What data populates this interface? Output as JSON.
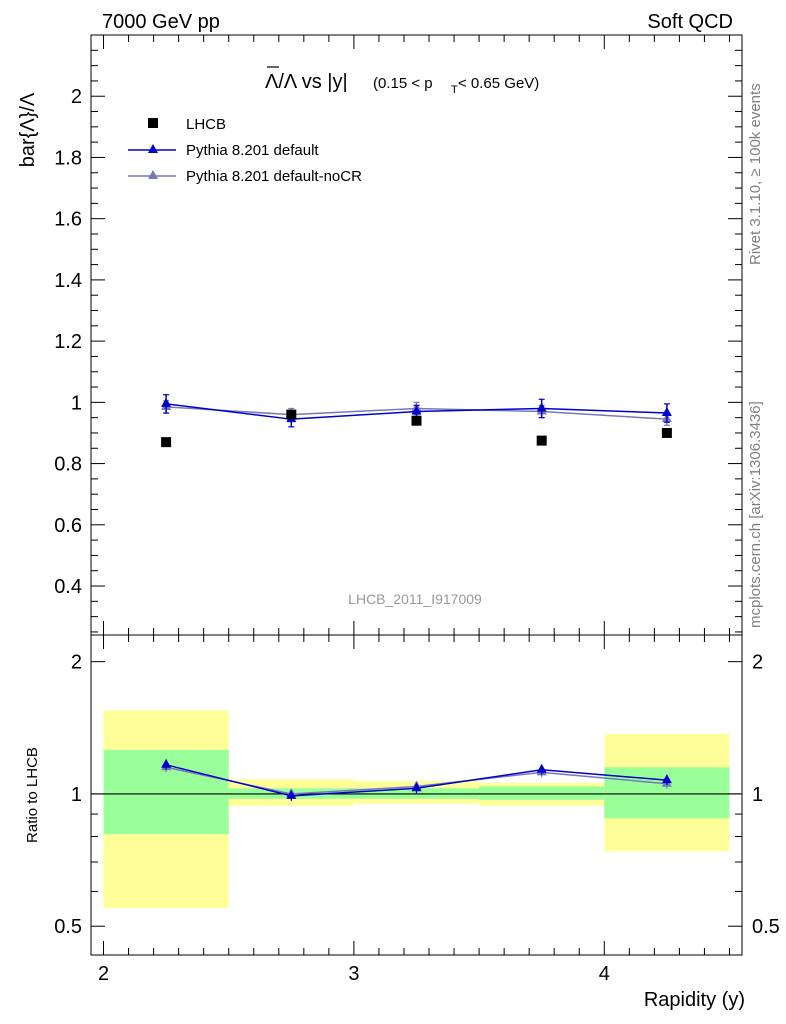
{
  "header": {
    "left": "7000 GeV pp",
    "right": "Soft QCD"
  },
  "side": {
    "rivet": "Rivet 3.1.10, ≥ 100k events",
    "mcplots": "mcplots.cern.ch [arXiv:1306.3436]"
  },
  "watermark": "LHCB_2011_I917009",
  "title": {
    "main": "Λ/Λ vs |y|",
    "cut_open": "(0.15 < p",
    "cut_sub": "T",
    "cut_close": " < 0.65 GeV)"
  },
  "ylabel_top": "bar{Λ}/Λ",
  "ylabel_bottom": "Ratio to LHCB",
  "xlabel": "Rapidity (y)",
  "legend": [
    {
      "label": "LHCB",
      "marker": "square",
      "color": "#000000"
    },
    {
      "label": "Pythia 8.201 default",
      "marker": "triangle",
      "color": "#0000cc"
    },
    {
      "label": "Pythia 8.201 default-noCR",
      "marker": "triangle",
      "color": "#7777bb"
    }
  ],
  "colors": {
    "band_inner": "#99ff99",
    "band_outer": "#ffff99",
    "default": "#0000cc",
    "noCR": "#7777bb",
    "data": "#000000"
  },
  "chart_data": [
    {
      "type": "scatter",
      "panel": "main",
      "x_ticks": [
        2,
        3,
        4
      ],
      "y_ticks": [
        0.4,
        0.6,
        0.8,
        1,
        1.2,
        1.4,
        1.6,
        1.8,
        2
      ],
      "xlim": [
        1.95,
        4.55
      ],
      "ylim": [
        0.24,
        2.2
      ],
      "series": [
        {
          "name": "LHCB",
          "x": [
            2.25,
            2.75,
            3.25,
            3.75,
            4.25
          ],
          "y": [
            0.87,
            0.96,
            0.94,
            0.875,
            0.9
          ],
          "xerr": [
            0.25,
            0.25,
            0.25,
            0.25,
            0.25
          ]
        },
        {
          "name": "Pythia 8.201 default",
          "x": [
            2.25,
            2.75,
            3.25,
            3.75,
            4.25
          ],
          "y": [
            0.995,
            0.945,
            0.97,
            0.98,
            0.965
          ],
          "yerr": [
            0.03,
            0.025,
            0.02,
            0.03,
            0.03
          ]
        },
        {
          "name": "Pythia 8.201 default-noCR",
          "x": [
            2.25,
            2.75,
            3.25,
            3.75,
            4.25
          ],
          "y": [
            0.985,
            0.96,
            0.98,
            0.97,
            0.945
          ],
          "yerr": [
            0.02,
            0.02,
            0.02,
            0.02,
            0.02
          ]
        }
      ]
    },
    {
      "type": "scatter",
      "panel": "ratio",
      "ylabel": "Ratio to LHCB",
      "xlabel": "Rapidity (y)",
      "x_ticks": [
        2,
        3,
        4
      ],
      "y_ticks": [
        0.5,
        1,
        2
      ],
      "yscale": "log",
      "xlim": [
        1.95,
        4.55
      ],
      "ylim": [
        0.43,
        2.3
      ],
      "bands": [
        {
          "x": [
            2.0,
            2.5
          ],
          "inner": [
            0.81,
            1.26
          ],
          "outer": [
            0.55,
            1.55
          ]
        },
        {
          "x": [
            2.5,
            3.0
          ],
          "inner": [
            0.975,
            1.03
          ],
          "outer": [
            0.94,
            1.08
          ]
        },
        {
          "x": [
            3.0,
            3.5
          ],
          "inner": [
            0.975,
            1.03
          ],
          "outer": [
            0.95,
            1.07
          ]
        },
        {
          "x": [
            3.5,
            4.0
          ],
          "inner": [
            0.97,
            1.04
          ],
          "outer": [
            0.94,
            1.06
          ]
        },
        {
          "x": [
            4.0,
            4.5
          ],
          "inner": [
            0.88,
            1.15
          ],
          "outer": [
            0.74,
            1.37
          ]
        }
      ],
      "series": [
        {
          "name": "Pythia 8.201 default",
          "x": [
            2.25,
            2.75,
            3.25,
            3.75,
            4.25
          ],
          "y": [
            1.165,
            0.99,
            1.03,
            1.135,
            1.075
          ]
        },
        {
          "name": "Pythia 8.201 default-noCR",
          "x": [
            2.25,
            2.75,
            3.25,
            3.75,
            4.25
          ],
          "y": [
            1.15,
            1.0,
            1.04,
            1.12,
            1.055
          ]
        }
      ]
    }
  ]
}
